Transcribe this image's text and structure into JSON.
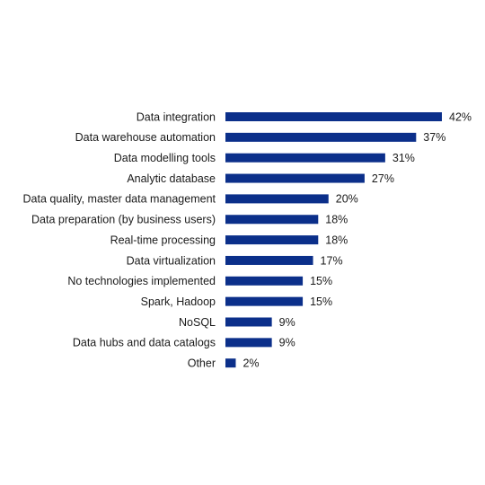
{
  "chart_data": {
    "type": "bar",
    "orientation": "horizontal",
    "categories": [
      "Data integration",
      "Data warehouse automation",
      "Data modelling tools",
      "Analytic database",
      "Data quality, master data management",
      "Data preparation (by business users)",
      "Real-time processing",
      "Data virtualization",
      "No technologies implemented",
      "Spark, Hadoop",
      "NoSQL",
      "Data hubs and data catalogs",
      "Other"
    ],
    "values": [
      42,
      37,
      31,
      27,
      20,
      18,
      18,
      17,
      15,
      15,
      9,
      9,
      2
    ],
    "value_labels": [
      "42%",
      "37%",
      "31%",
      "27%",
      "20%",
      "18%",
      "18%",
      "17%",
      "15%",
      "15%",
      "9%",
      "9%",
      "2%"
    ],
    "title": "",
    "xlabel": "",
    "ylabel": "",
    "xlim": [
      0,
      42
    ],
    "grid": false,
    "legend": "none",
    "colors": {
      "bar": "#0b2f8a",
      "text": "#1a1a1a"
    }
  }
}
